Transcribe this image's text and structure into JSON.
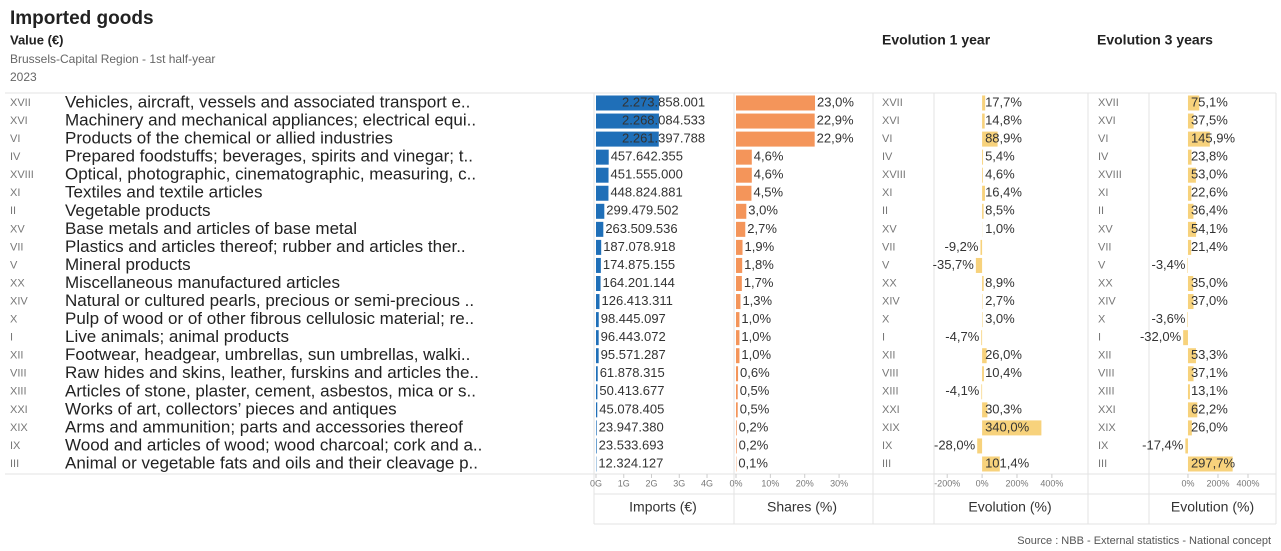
{
  "title": "Imported goods",
  "subtitle": "Value (€)",
  "region": "Brussels-Capital Region - 1st half-year",
  "year": "2023",
  "source": "Source : NBB - External statistics - National concept",
  "rows": {
    "codes": [
      "XVII",
      "XVI",
      "VI",
      "IV",
      "XVIII",
      "XI",
      "II",
      "XV",
      "VII",
      "V",
      "XX",
      "XIV",
      "X",
      "I",
      "XII",
      "VIII",
      "XIII",
      "XXI",
      "XIX",
      "IX",
      "III"
    ],
    "names": [
      "Vehicles, aircraft, vessels and associated transport e..",
      "Machinery and mechanical appliances; electrical equi..",
      "Products of the chemical or allied industries",
      "Prepared foodstuffs; beverages, spirits and vinegar; t..",
      "Optical, photographic, cinematographic, measuring, c..",
      "Textiles and textile articles",
      "Vegetable products",
      "Base metals and articles of base metal",
      "Plastics and articles thereof; rubber and articles ther..",
      "Mineral products",
      "Miscellaneous manufactured articles",
      "Natural or cultured pearls, precious or semi-precious ..",
      "Pulp of wood or of other fibrous cellulosic material; re..",
      "Live animals; animal products",
      "Footwear, headgear, umbrellas, sun umbrellas, walki..",
      "Raw hides and skins, leather, furskins and articles the..",
      "Articles of stone, plaster, cement, asbestos, mica or s..",
      "Works of art, collectors’ pieces and antiques",
      "Arms and ammunition; parts and accessories thereof",
      "Wood and articles of wood; wood charcoal; cork and a..",
      "Animal or vegetable fats and oils and their cleavage p.."
    ]
  },
  "chart_data": [
    {
      "type": "bar",
      "x_label": "Imports (€)",
      "color": "#1f6fb8",
      "values": [
        2273858001,
        2268084533,
        2261397788,
        457642355,
        451555000,
        448824881,
        299479502,
        263509536,
        187078918,
        174875155,
        164201144,
        126413311,
        98445097,
        96443072,
        95571287,
        61878315,
        50413677,
        45078405,
        23947380,
        23533693,
        12324127
      ],
      "value_labels": [
        "2.273.858.001",
        "2.268.084.533",
        "2.261.397.788",
        "457.642.355",
        "451.555.000",
        "448.824.881",
        "299.479.502",
        "263.509.536",
        "187.078.918",
        "174.875.155",
        "164.201.144",
        "126.413.311",
        "98.445.097",
        "96.443.072",
        "95.571.287",
        "61.878.315",
        "50.413.677",
        "45.078.405",
        "23.947.380",
        "23.533.693",
        "12.324.127"
      ],
      "xlim": [
        0,
        4900000000
      ],
      "xticks": [
        {
          "value": 0,
          "label": "0G"
        },
        {
          "value": 1000000000,
          "label": "1G"
        },
        {
          "value": 2000000000,
          "label": "2G"
        },
        {
          "value": 3000000000,
          "label": "3G"
        },
        {
          "value": 4000000000,
          "label": "4G"
        }
      ]
    },
    {
      "type": "bar",
      "x_label": "Shares (%)",
      "color": "#f4955a",
      "values": [
        23.0,
        22.9,
        22.9,
        4.6,
        4.6,
        4.5,
        3.0,
        2.7,
        1.9,
        1.8,
        1.7,
        1.3,
        1.0,
        1.0,
        1.0,
        0.6,
        0.5,
        0.5,
        0.2,
        0.2,
        0.1
      ],
      "value_labels": [
        "23,0%",
        "22,9%",
        "22,9%",
        "4,6%",
        "4,6%",
        "4,5%",
        "3,0%",
        "2,7%",
        "1,9%",
        "1,8%",
        "1,7%",
        "1,3%",
        "1,0%",
        "1,0%",
        "1,0%",
        "0,6%",
        "0,5%",
        "0,5%",
        "0,2%",
        "0,2%",
        "0,1%"
      ],
      "xlim": [
        0,
        39
      ],
      "xticks": [
        {
          "value": 0,
          "label": "0%"
        },
        {
          "value": 10,
          "label": "10%"
        },
        {
          "value": 20,
          "label": "20%"
        },
        {
          "value": 30,
          "label": "30%"
        }
      ]
    },
    {
      "type": "bar",
      "title": "Evolution 1 year",
      "x_label": "Evolution (%)",
      "color": "#f7d27c",
      "values": [
        17.7,
        14.8,
        88.9,
        5.4,
        4.6,
        16.4,
        8.5,
        1.0,
        -9.2,
        -35.7,
        8.9,
        2.7,
        3.0,
        -4.7,
        26.0,
        10.4,
        -4.1,
        30.3,
        340.0,
        -28.0,
        101.4
      ],
      "value_labels": [
        "17,7%",
        "14,8%",
        "88,9%",
        "5,4%",
        "4,6%",
        "16,4%",
        "8,5%",
        "1,0%",
        "-9,2%",
        "-35,7%",
        "8,9%",
        "2,7%",
        "3,0%",
        "-4,7%",
        "26,0%",
        "10,4%",
        "-4,1%",
        "30,3%",
        "340,0%",
        "-28,0%",
        "101,4%"
      ],
      "xlim": [
        -270,
        590
      ],
      "xticks": [
        {
          "value": -200,
          "label": "-200%"
        },
        {
          "value": 0,
          "label": "0%"
        },
        {
          "value": 200,
          "label": "200%"
        },
        {
          "value": 400,
          "label": "400%"
        }
      ]
    },
    {
      "type": "bar",
      "title": "Evolution 3 years",
      "x_label": "Evolution (%)",
      "color": "#f7d27c",
      "values": [
        75.1,
        37.5,
        145.9,
        23.8,
        53.0,
        22.6,
        36.4,
        54.1,
        21.4,
        -3.4,
        35.0,
        37.0,
        -3.6,
        -32.0,
        53.3,
        37.1,
        13.1,
        62.2,
        26.0,
        -17.4,
        297.7
      ],
      "value_labels": [
        "75,1%",
        "37,5%",
        "145,9%",
        "23,8%",
        "53,0%",
        "22,6%",
        "36,4%",
        "54,1%",
        "21,4%",
        "-3,4%",
        "35,0%",
        "37,0%",
        "-3,6%",
        "-32,0%",
        "53,3%",
        "37,1%",
        "13,1%",
        "62,2%",
        "26,0%",
        "-17,4%",
        "297,7%"
      ],
      "xlim": [
        -253,
        580
      ],
      "xticks": [
        {
          "value": 0,
          "label": "0%"
        },
        {
          "value": 200,
          "label": "200%"
        },
        {
          "value": 400,
          "label": "400%"
        }
      ]
    }
  ]
}
